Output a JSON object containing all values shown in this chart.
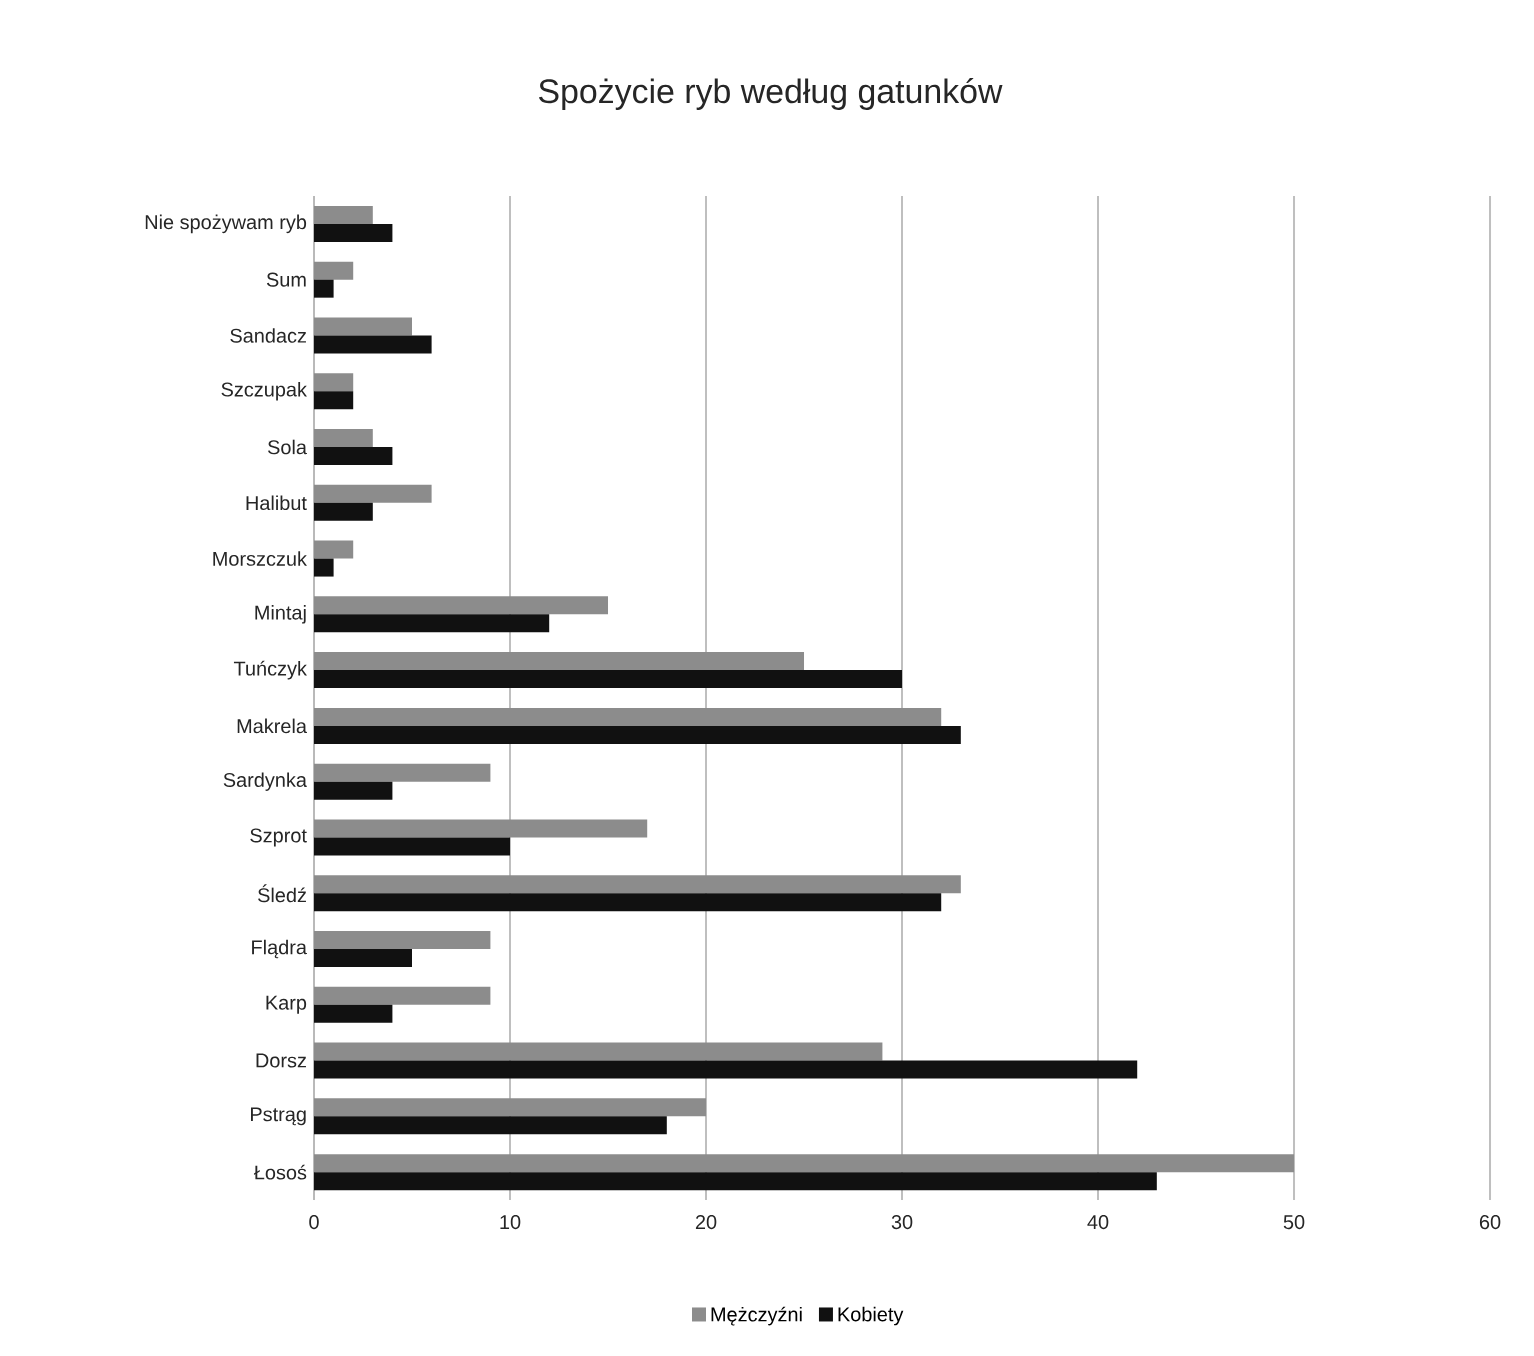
{
  "chart_data": {
    "type": "bar",
    "orientation": "horizontal",
    "title": "Spożycie ryb według gatunków",
    "categories": [
      "Nie spożywam ryb",
      "Sum",
      "Sandacz",
      "Szczupak",
      "Sola",
      "Halibut",
      "Morszczuk",
      "Mintaj",
      "Tuńczyk",
      "Makrela",
      "Sardynka",
      "Szprot",
      "Śledź",
      "Flądra",
      "Karp",
      "Dorsz",
      "Pstrąg",
      "Łosoś"
    ],
    "series": [
      {
        "name": "Mężczyźni",
        "color": "#8c8c8c",
        "values": [
          3,
          2,
          5,
          2,
          3,
          6,
          2,
          15,
          25,
          32,
          9,
          17,
          33,
          9,
          9,
          29,
          20,
          50
        ]
      },
      {
        "name": "Kobiety",
        "color": "#111111",
        "values": [
          4,
          1,
          6,
          2,
          4,
          3,
          1,
          12,
          30,
          33,
          4,
          10,
          32,
          5,
          4,
          42,
          18,
          43
        ]
      }
    ],
    "xlim": [
      0,
      60
    ],
    "xticks": [
      0,
      10,
      20,
      30,
      40,
      50,
      60
    ],
    "grid": "x",
    "legend": "bottom"
  }
}
